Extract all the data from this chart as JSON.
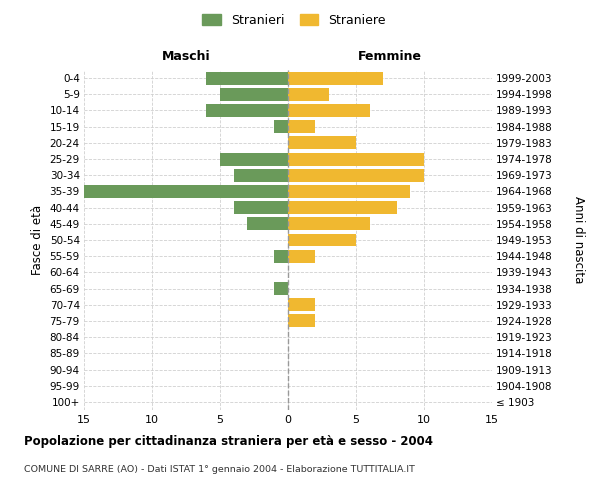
{
  "age_groups": [
    "100+",
    "95-99",
    "90-94",
    "85-89",
    "80-84",
    "75-79",
    "70-74",
    "65-69",
    "60-64",
    "55-59",
    "50-54",
    "45-49",
    "40-44",
    "35-39",
    "30-34",
    "25-29",
    "20-24",
    "15-19",
    "10-14",
    "5-9",
    "0-4"
  ],
  "birth_years": [
    "≤ 1903",
    "1904-1908",
    "1909-1913",
    "1914-1918",
    "1919-1923",
    "1924-1928",
    "1929-1933",
    "1934-1938",
    "1939-1943",
    "1944-1948",
    "1949-1953",
    "1954-1958",
    "1959-1963",
    "1964-1968",
    "1969-1973",
    "1974-1978",
    "1979-1983",
    "1984-1988",
    "1989-1993",
    "1994-1998",
    "1999-2003"
  ],
  "males": [
    0,
    0,
    0,
    0,
    0,
    0,
    0,
    1,
    0,
    1,
    0,
    3,
    4,
    15,
    4,
    5,
    0,
    1,
    6,
    5,
    6
  ],
  "females": [
    0,
    0,
    0,
    0,
    0,
    2,
    2,
    0,
    0,
    2,
    5,
    6,
    8,
    9,
    10,
    10,
    5,
    2,
    6,
    3,
    7
  ],
  "male_color": "#6a9a5a",
  "female_color": "#f0b830",
  "bar_height": 0.8,
  "xlim": 15,
  "title": "Popolazione per cittadinanza straniera per età e sesso - 2004",
  "subtitle": "COMUNE DI SARRE (AO) - Dati ISTAT 1° gennaio 2004 - Elaborazione TUTTITALIA.IT",
  "ylabel_left": "Fasce di età",
  "ylabel_right": "Anni di nascita",
  "label_maschi": "Maschi",
  "label_femmine": "Femmine",
  "legend_stranieri": "Stranieri",
  "legend_straniere": "Straniere",
  "background_color": "#ffffff",
  "grid_color": "#d0d0d0"
}
